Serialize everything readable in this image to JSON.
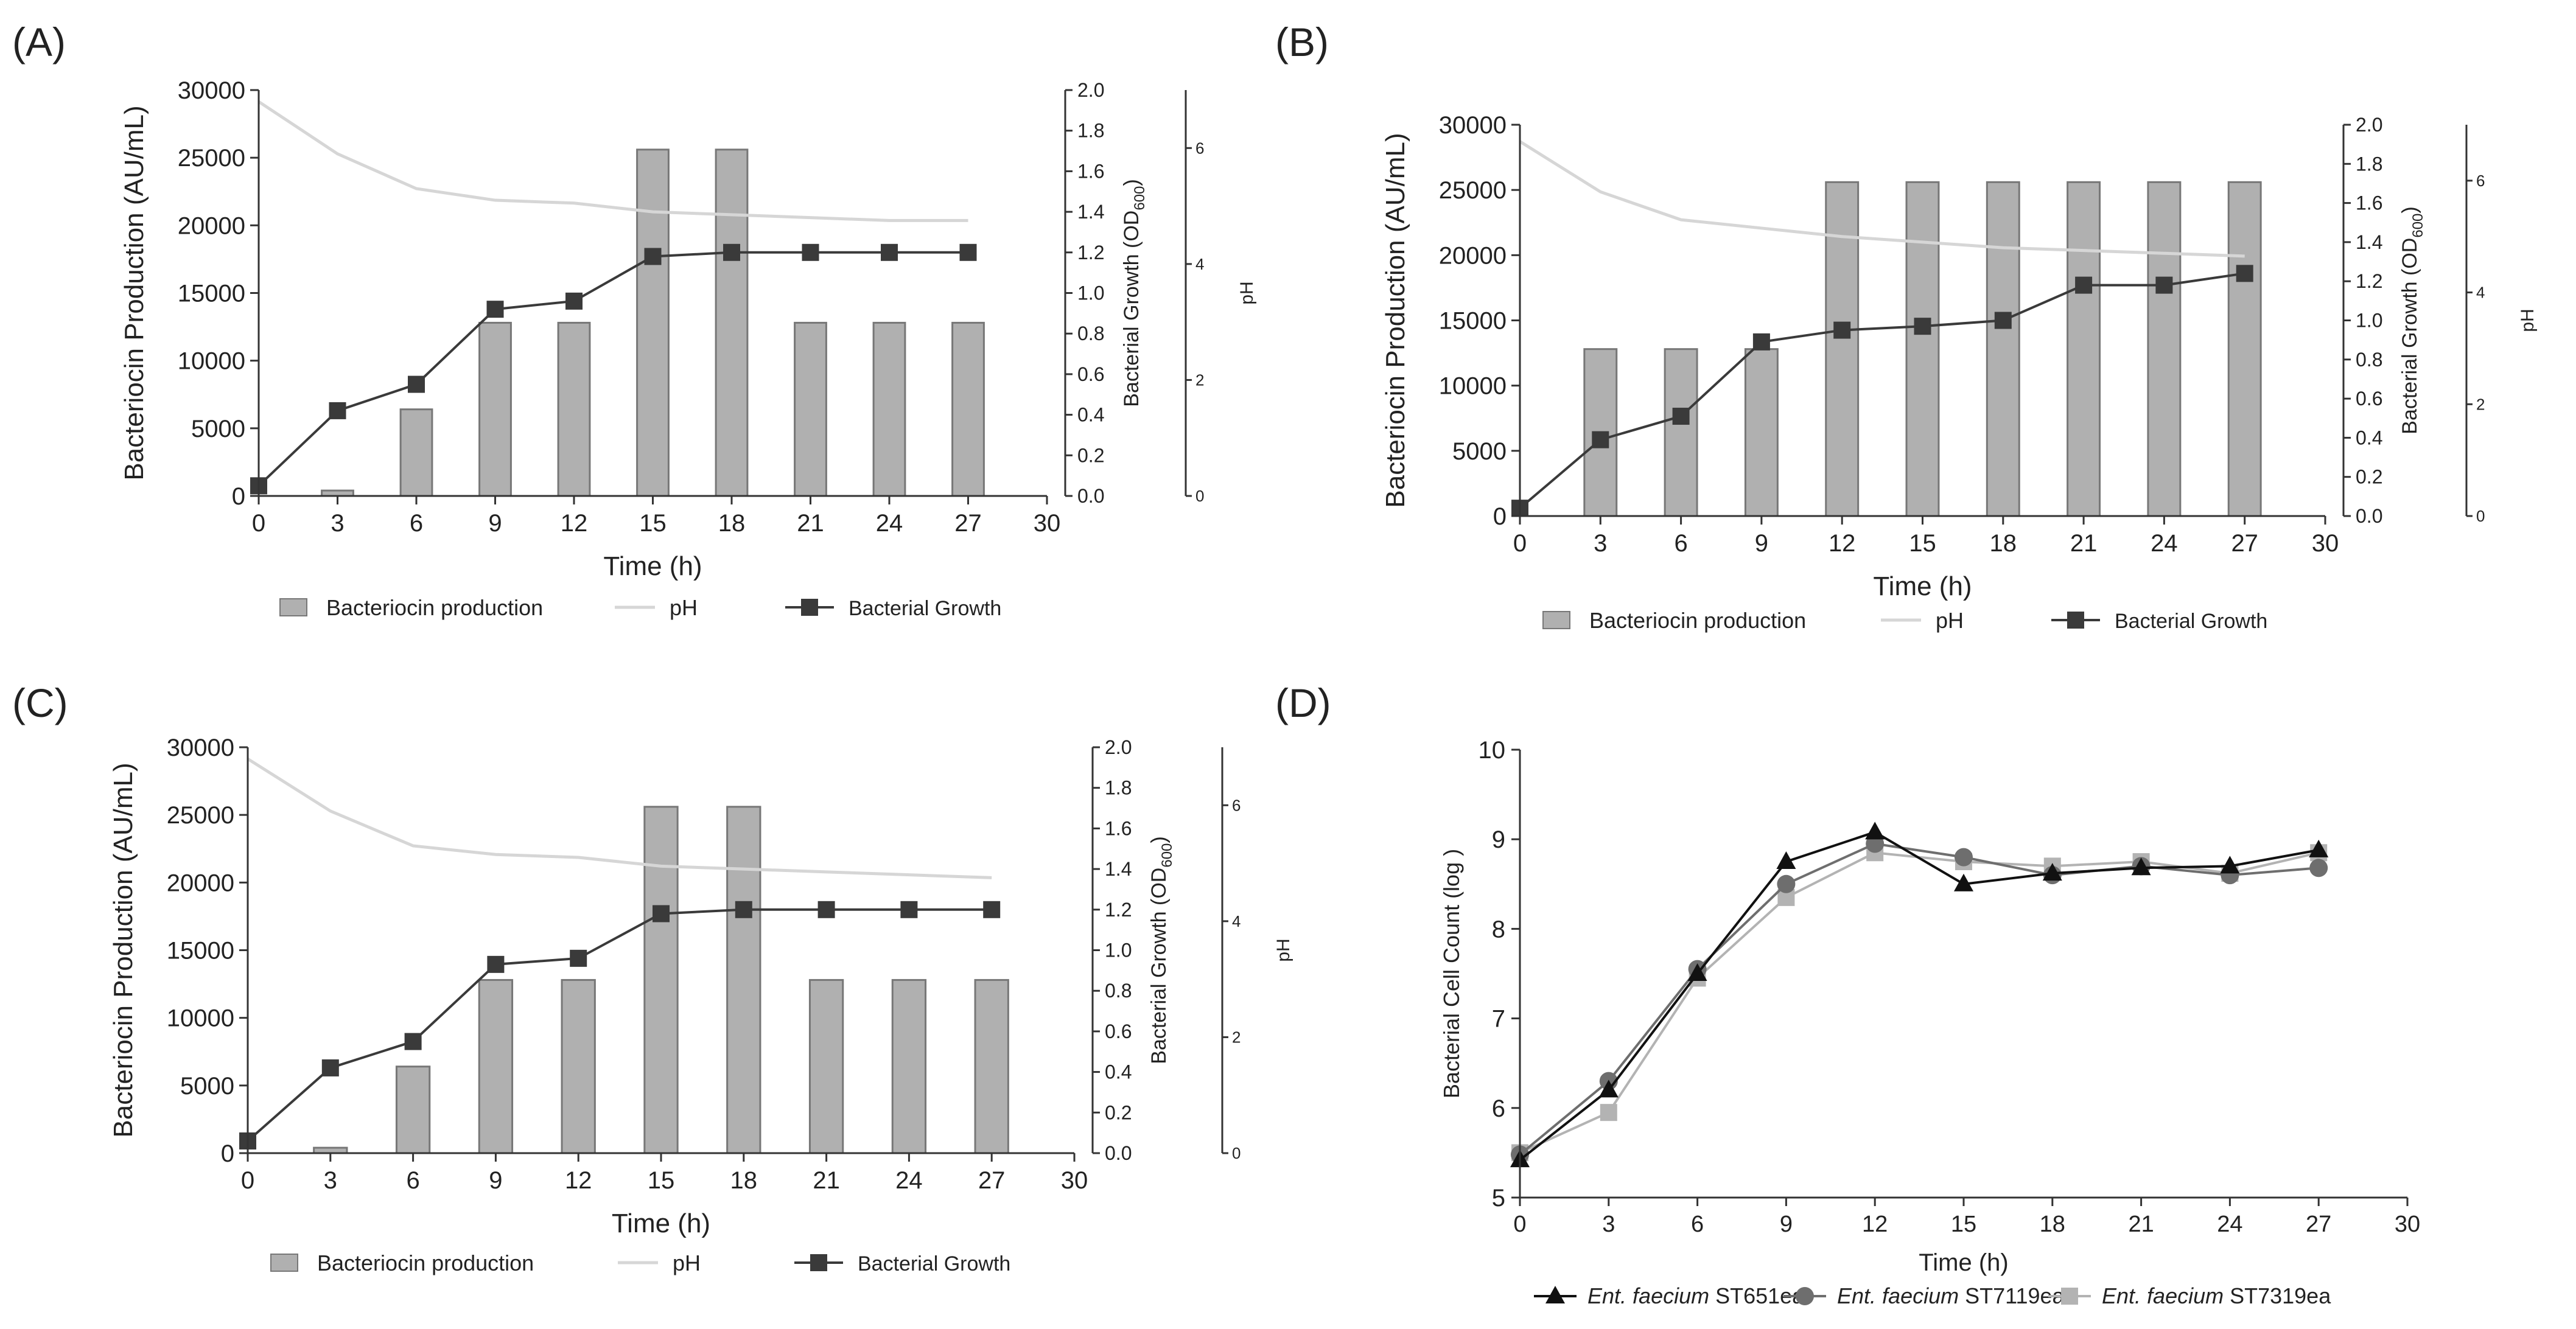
{
  "colors": {
    "bar_fill": "#b0b0b0",
    "bar_stroke": "#777777",
    "ph_line": "#d6d6d6",
    "growth": "#3a3a3a",
    "series_d1": "#111111",
    "series_d2": "#6e6e6e",
    "series_d3": "#b3b3b3"
  },
  "chart_data": [
    {
      "panel": "(A)",
      "type": "bar",
      "x": [
        0,
        3,
        6,
        9,
        12,
        15,
        18,
        21,
        24,
        27
      ],
      "xlim": [
        0,
        30
      ],
      "xticks": [
        "0",
        "3",
        "6",
        "9",
        "12",
        "15",
        "18",
        "21",
        "24",
        "27",
        "30"
      ],
      "xlabel": "Time (h)",
      "ylabel": "Bacteriocin Production (AU/mL)",
      "ylim": [
        0,
        30000
      ],
      "yticks": [
        "0",
        "5000",
        "10000",
        "15000",
        "20000",
        "25000",
        "30000"
      ],
      "y2label_main": "Bacterial Growth (OD",
      "y2label_sub": "600",
      "y2label_end": ")",
      "y2lim": [
        0,
        2.0
      ],
      "y2ticks": [
        "0.0",
        "0.2",
        "0.4",
        "0.6",
        "0.8",
        "1.0",
        "1.2",
        "1.4",
        "1.6",
        "1.8",
        "2.0"
      ],
      "y3label": "pH",
      "y3lim": [
        0,
        7
      ],
      "y3ticks": [
        "0",
        "2",
        "4",
        "6"
      ],
      "legend": [
        "Bacteriocin production",
        "pH",
        "Bacterial Growth"
      ],
      "series": [
        {
          "name": "Bacteriocin production",
          "type": "bar",
          "values": [
            0,
            400,
            6400,
            12800,
            12800,
            25600,
            25600,
            12800,
            12800,
            12800
          ]
        },
        {
          "name": "pH",
          "type": "line",
          "values": [
            6.8,
            5.9,
            5.3,
            5.1,
            5.05,
            4.9,
            4.85,
            4.8,
            4.75,
            4.75
          ]
        },
        {
          "name": "Bacterial Growth",
          "type": "line",
          "values": [
            0.05,
            0.42,
            0.55,
            0.92,
            0.96,
            1.18,
            1.2,
            1.2,
            1.2,
            1.2
          ]
        }
      ]
    },
    {
      "panel": "(B)",
      "type": "bar",
      "x": [
        0,
        3,
        6,
        9,
        12,
        15,
        18,
        21,
        24,
        27
      ],
      "xlim": [
        0,
        30
      ],
      "xticks": [
        "0",
        "3",
        "6",
        "9",
        "12",
        "15",
        "18",
        "21",
        "24",
        "27",
        "30"
      ],
      "xlabel": "Time (h)",
      "ylabel": "Bacteriocin Production (AU/mL)",
      "ylim": [
        0,
        30000
      ],
      "yticks": [
        "0",
        "5000",
        "10000",
        "15000",
        "20000",
        "25000",
        "30000"
      ],
      "y2label_main": "Bacterial Growth (OD",
      "y2label_sub": "600",
      "y2label_end": ")",
      "y2lim": [
        0,
        2.0
      ],
      "y2ticks": [
        "0.0",
        "0.2",
        "0.4",
        "0.6",
        "0.8",
        "1.0",
        "1.2",
        "1.4",
        "1.6",
        "1.8",
        "2.0"
      ],
      "y3label": "pH",
      "y3lim": [
        0,
        7
      ],
      "y3ticks": [
        "0",
        "2",
        "4",
        "6"
      ],
      "legend": [
        "Bacteriocin production",
        "pH",
        "Bacterial Growth"
      ],
      "series": [
        {
          "name": "Bacteriocin production",
          "type": "bar",
          "values": [
            0,
            12800,
            12800,
            12800,
            25600,
            25600,
            25600,
            25600,
            25600,
            25600
          ]
        },
        {
          "name": "pH",
          "type": "line",
          "values": [
            6.7,
            5.8,
            5.3,
            5.15,
            5.0,
            4.9,
            4.8,
            4.75,
            4.7,
            4.65
          ]
        },
        {
          "name": "Bacterial Growth",
          "type": "line",
          "values": [
            0.04,
            0.39,
            0.51,
            0.89,
            0.95,
            0.97,
            1.0,
            1.18,
            1.18,
            1.24
          ]
        }
      ]
    },
    {
      "panel": "(C)",
      "type": "bar",
      "x": [
        0,
        3,
        6,
        9,
        12,
        15,
        18,
        21,
        24,
        27
      ],
      "xlim": [
        0,
        30
      ],
      "xticks": [
        "0",
        "3",
        "6",
        "9",
        "12",
        "15",
        "18",
        "21",
        "24",
        "27",
        "30"
      ],
      "xlabel": "Time (h)",
      "ylabel": "Bacteriocin Production (AU/mL)",
      "ylim": [
        0,
        30000
      ],
      "yticks": [
        "0",
        "5000",
        "10000",
        "15000",
        "20000",
        "25000",
        "30000"
      ],
      "y2label_main": "Bacterial Growth (OD",
      "y2label_sub": "600",
      "y2label_end": ")",
      "y2lim": [
        0,
        2.0
      ],
      "y2ticks": [
        "0.0",
        "0.2",
        "0.4",
        "0.6",
        "0.8",
        "1.0",
        "1.2",
        "1.4",
        "1.6",
        "1.8",
        "2.0"
      ],
      "y3label": "pH",
      "y3lim": [
        0,
        7
      ],
      "y3ticks": [
        "0",
        "2",
        "4",
        "6"
      ],
      "legend": [
        "Bacteriocin production",
        "pH",
        "Bacterial Growth"
      ],
      "series": [
        {
          "name": "Bacteriocin production",
          "type": "bar",
          "values": [
            0,
            400,
            6400,
            12800,
            12800,
            25600,
            25600,
            12800,
            12800,
            12800
          ]
        },
        {
          "name": "pH",
          "type": "line",
          "values": [
            6.8,
            5.9,
            5.3,
            5.15,
            5.1,
            4.95,
            4.9,
            4.85,
            4.8,
            4.75
          ]
        },
        {
          "name": "Bacterial Growth",
          "type": "line",
          "values": [
            0.06,
            0.42,
            0.55,
            0.93,
            0.96,
            1.18,
            1.2,
            1.2,
            1.2,
            1.2
          ]
        }
      ]
    },
    {
      "panel": "(D)",
      "type": "line",
      "x": [
        0,
        3,
        6,
        9,
        12,
        15,
        18,
        21,
        24,
        27
      ],
      "xlim": [
        0,
        30
      ],
      "xticks": [
        "0",
        "3",
        "6",
        "9",
        "12",
        "15",
        "18",
        "21",
        "24",
        "27",
        "30"
      ],
      "xlabel": "Time (h)",
      "ylabel": "Bacterial Cell Count  (log )",
      "ylim": [
        5,
        10
      ],
      "yticks": [
        "5",
        "6",
        "7",
        "8",
        "9",
        "10"
      ],
      "series": [
        {
          "name_italic": "Ent. faecium",
          "name_rest": " ST651ea",
          "marker": "triangle",
          "values": [
            5.42,
            6.2,
            7.5,
            8.75,
            9.08,
            8.5,
            8.62,
            8.68,
            8.7,
            8.88
          ]
        },
        {
          "name_italic": "Ent. faecium",
          "name_rest": " ST7119ea",
          "marker": "circle",
          "values": [
            5.48,
            6.3,
            7.55,
            8.5,
            8.95,
            8.8,
            8.6,
            8.7,
            8.6,
            8.68
          ]
        },
        {
          "name_italic": "Ent. faecium",
          "name_rest": " ST7319ea",
          "marker": "square",
          "values": [
            5.5,
            5.95,
            7.45,
            8.35,
            8.85,
            8.75,
            8.7,
            8.75,
            8.62,
            8.85
          ]
        }
      ]
    }
  ]
}
